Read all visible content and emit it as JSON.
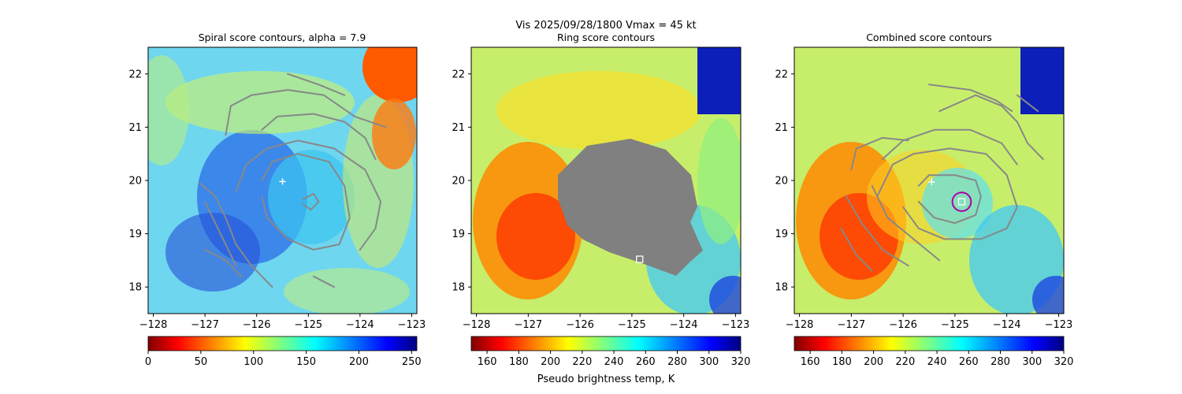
{
  "suptitle_line1": "Vis  2025/09/28/1800    Vmax = 45 kt",
  "colorbar_label": "Pseudo brightness temp, K",
  "colors": {
    "contour": "#888888",
    "mask": "#808080",
    "center_marker": "#ffffff",
    "circle": "#aa00aa",
    "cross": "#ffffff"
  },
  "chart_data": [
    {
      "type": "heatmap",
      "title": "Spiral score contours, alpha =  7.9",
      "colormap": "jet_r",
      "xlim": [
        -128.1,
        -122.9
      ],
      "ylim": [
        17.5,
        22.5
      ],
      "xticks": [
        -128,
        -127,
        -126,
        -125,
        -124,
        -123
      ],
      "yticks": [
        18,
        19,
        20,
        21,
        22
      ],
      "colorbar": {
        "range": [
          0,
          255
        ],
        "ticks": [
          0,
          50,
          100,
          150,
          200,
          250
        ]
      },
      "cross_marker": {
        "x": -125.5,
        "y": 19.98
      },
      "contours": [
        [
          [
            -127.1,
            19.95
          ],
          [
            -126.8,
            19.7
          ],
          [
            -126.6,
            19.3
          ],
          [
            -126.4,
            18.8
          ],
          [
            -126.1,
            18.4
          ],
          [
            -125.7,
            18.0
          ]
        ],
        [
          [
            -127.0,
            19.6
          ],
          [
            -126.7,
            19.0
          ],
          [
            -126.4,
            18.4
          ]
        ],
        [
          [
            -126.4,
            19.8
          ],
          [
            -126.2,
            20.3
          ],
          [
            -125.8,
            20.6
          ],
          [
            -125.2,
            20.75
          ],
          [
            -124.5,
            20.6
          ],
          [
            -123.9,
            20.2
          ],
          [
            -123.6,
            19.6
          ],
          [
            -123.7,
            19.1
          ],
          [
            -124.0,
            18.7
          ]
        ],
        [
          [
            -125.9,
            20.0
          ],
          [
            -125.7,
            20.35
          ],
          [
            -125.2,
            20.5
          ],
          [
            -124.6,
            20.35
          ],
          [
            -124.3,
            19.9
          ],
          [
            -124.2,
            19.3
          ],
          [
            -124.4,
            18.8
          ],
          [
            -124.9,
            18.7
          ],
          [
            -125.4,
            18.9
          ],
          [
            -125.8,
            19.3
          ],
          [
            -125.9,
            19.7
          ]
        ],
        [
          [
            -125.1,
            19.65
          ],
          [
            -124.9,
            19.75
          ],
          [
            -124.8,
            19.6
          ],
          [
            -124.95,
            19.45
          ],
          [
            -125.1,
            19.55
          ]
        ],
        [
          [
            -127.0,
            18.7
          ],
          [
            -126.6,
            18.5
          ],
          [
            -126.3,
            18.2
          ]
        ],
        [
          [
            -125.9,
            20.95
          ],
          [
            -125.6,
            21.2
          ],
          [
            -124.9,
            21.25
          ],
          [
            -124.3,
            21.1
          ],
          [
            -123.9,
            20.8
          ],
          [
            -123.7,
            20.4
          ]
        ],
        [
          [
            -126.6,
            20.85
          ],
          [
            -126.5,
            21.4
          ],
          [
            -126.1,
            21.6
          ],
          [
            -125.4,
            21.7
          ],
          [
            -124.7,
            21.6
          ],
          [
            -124.1,
            21.2
          ],
          [
            -123.5,
            21.0
          ]
        ],
        [
          [
            -125.4,
            22.0
          ],
          [
            -124.8,
            21.8
          ],
          [
            -124.3,
            21.6
          ]
        ],
        [
          [
            -124.9,
            18.2
          ],
          [
            -124.5,
            18.0
          ]
        ]
      ]
    },
    {
      "type": "heatmap",
      "title": "Ring score contours",
      "colormap": "jet_r",
      "xlim": [
        -128.1,
        -122.9
      ],
      "ylim": [
        17.5,
        22.5
      ],
      "xticks": [
        -128,
        -127,
        -126,
        -125,
        -124,
        -123
      ],
      "yticks": [
        18,
        19,
        20,
        21,
        22
      ],
      "colorbar": {
        "range": [
          150,
          320
        ],
        "ticks": [
          160,
          180,
          200,
          220,
          240,
          260,
          280,
          300,
          320
        ]
      },
      "center_marker": {
        "x": -124.85,
        "y": 18.52
      }
    },
    {
      "type": "heatmap",
      "title": "Combined score contours",
      "colormap": "jet_r",
      "xlim": [
        -128.1,
        -122.9
      ],
      "ylim": [
        17.5,
        22.5
      ],
      "xticks": [
        -128,
        -127,
        -126,
        -125,
        -124,
        -123
      ],
      "yticks": [
        18,
        19,
        20,
        21,
        22
      ],
      "colorbar": {
        "range": [
          150,
          320
        ],
        "ticks": [
          160,
          180,
          200,
          220,
          240,
          260,
          280,
          300,
          320
        ]
      },
      "cross_marker": {
        "x": -125.45,
        "y": 19.97
      },
      "center_marker": {
        "x": -124.87,
        "y": 19.6
      },
      "center_circle": {
        "x": -124.87,
        "y": 19.6,
        "radius_deg": 0.18
      },
      "contours": [
        [
          [
            -126.5,
            19.7
          ],
          [
            -126.2,
            20.3
          ],
          [
            -125.8,
            20.5
          ],
          [
            -125.1,
            20.6
          ],
          [
            -124.4,
            20.5
          ],
          [
            -124.0,
            20.1
          ],
          [
            -123.8,
            19.5
          ],
          [
            -124.0,
            19.1
          ],
          [
            -124.5,
            18.9
          ],
          [
            -125.2,
            18.9
          ],
          [
            -125.7,
            19.1
          ],
          [
            -126.0,
            19.5
          ]
        ],
        [
          [
            -125.7,
            19.9
          ],
          [
            -125.5,
            20.1
          ],
          [
            -125.0,
            20.1
          ],
          [
            -124.6,
            20.0
          ],
          [
            -124.5,
            19.7
          ],
          [
            -124.6,
            19.35
          ],
          [
            -125.0,
            19.2
          ],
          [
            -125.4,
            19.3
          ],
          [
            -125.7,
            19.6
          ]
        ],
        [
          [
            -126.4,
            20.4
          ],
          [
            -126.0,
            20.75
          ],
          [
            -125.4,
            20.95
          ],
          [
            -124.7,
            20.95
          ],
          [
            -124.1,
            20.7
          ],
          [
            -123.8,
            20.3
          ]
        ],
        [
          [
            -127.0,
            20.2
          ],
          [
            -126.9,
            20.6
          ],
          [
            -126.4,
            20.8
          ],
          [
            -125.9,
            20.75
          ]
        ],
        [
          [
            -127.1,
            19.7
          ],
          [
            -126.8,
            19.2
          ],
          [
            -126.4,
            18.7
          ],
          [
            -125.9,
            18.4
          ]
        ],
        [
          [
            -127.2,
            19.1
          ],
          [
            -126.9,
            18.6
          ],
          [
            -126.6,
            18.3
          ]
        ],
        [
          [
            -126.6,
            19.9
          ],
          [
            -126.3,
            19.3
          ],
          [
            -125.8,
            18.9
          ],
          [
            -125.3,
            18.5
          ]
        ],
        [
          [
            -125.3,
            21.3
          ],
          [
            -124.6,
            21.6
          ],
          [
            -124.1,
            21.4
          ],
          [
            -123.8,
            21.1
          ],
          [
            -123.6,
            20.7
          ],
          [
            -123.3,
            20.4
          ]
        ],
        [
          [
            -125.5,
            21.8
          ],
          [
            -124.7,
            21.7
          ],
          [
            -124.2,
            21.5
          ],
          [
            -123.9,
            21.3
          ]
        ],
        [
          [
            -123.8,
            21.6
          ],
          [
            -123.4,
            21.3
          ]
        ]
      ]
    }
  ]
}
